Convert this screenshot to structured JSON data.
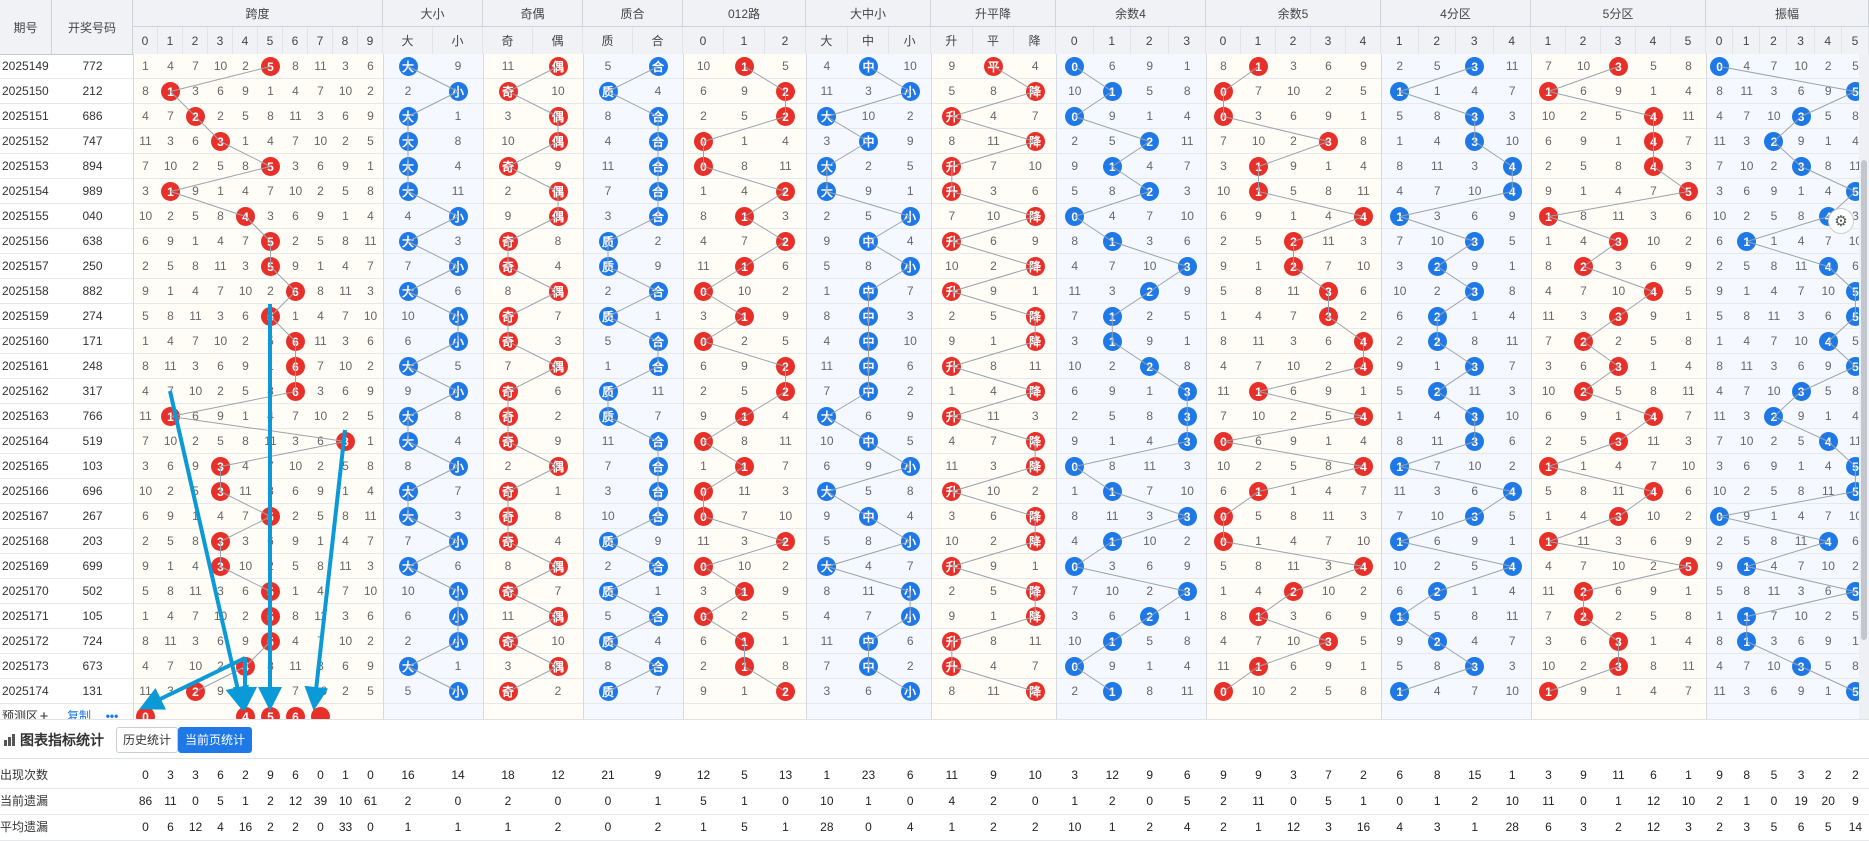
{
  "header": {
    "qihao": "期号",
    "kaijiang": "开奖号码",
    "groups": [
      {
        "label": "跨度",
        "subs": [
          "0",
          "1",
          "2",
          "3",
          "4",
          "5",
          "6",
          "7",
          "8",
          "9"
        ]
      },
      {
        "label": "大小",
        "subs": [
          "大",
          "小"
        ]
      },
      {
        "label": "奇偶",
        "subs": [
          "奇",
          "偶"
        ]
      },
      {
        "label": "质合",
        "subs": [
          "质",
          "合"
        ]
      },
      {
        "label": "012路",
        "subs": [
          "0",
          "1",
          "2"
        ]
      },
      {
        "label": "大中小",
        "subs": [
          "大",
          "中",
          "小"
        ]
      },
      {
        "label": "升平降",
        "subs": [
          "升",
          "平",
          "降"
        ]
      },
      {
        "label": "余数4",
        "subs": [
          "0",
          "1",
          "2",
          "3"
        ]
      },
      {
        "label": "余数5",
        "subs": [
          "0",
          "1",
          "2",
          "3",
          "4"
        ]
      },
      {
        "label": "4分区",
        "subs": [
          "1",
          "2",
          "3",
          "4"
        ]
      },
      {
        "label": "5分区",
        "subs": [
          "1",
          "2",
          "3",
          "4",
          "5"
        ]
      },
      {
        "label": "振幅",
        "subs": [
          "0",
          "1",
          "2",
          "3",
          "4",
          "5"
        ]
      }
    ]
  },
  "issues": [
    "2025149",
    "2025150",
    "2025151",
    "2025152",
    "2025153",
    "2025154",
    "2025155",
    "2025156",
    "2025157",
    "2025158",
    "2025159",
    "2025160",
    "2025161",
    "2025162",
    "2025163",
    "2025164",
    "2025165",
    "2025166",
    "2025167",
    "2025168",
    "2025169",
    "2025170",
    "2025171",
    "2025172",
    "2025173",
    "2025174"
  ],
  "numbers": [
    "772",
    "212",
    "686",
    "747",
    "894",
    "989",
    "040",
    "638",
    "250",
    "882",
    "274",
    "171",
    "248",
    "317",
    "766",
    "519",
    "103",
    "696",
    "267",
    "203",
    "699",
    "502",
    "105",
    "724",
    "673",
    "131"
  ],
  "prediction": {
    "label": "预测区",
    "add": "+",
    "copy": "复制",
    "more": "•••",
    "balls": [
      "0",
      "4",
      "5",
      "6",
      ""
    ]
  },
  "toolbar": {
    "title": "图表指标统计",
    "tab_history": "历史统计",
    "tab_current": "当前页统计"
  },
  "stats": [
    {
      "label": "出现次数",
      "values": [
        "0",
        "3",
        "3",
        "6",
        "2",
        "9",
        "6",
        "0",
        "1",
        "0",
        "16",
        "14",
        "18",
        "12",
        "21",
        "9",
        "12",
        "5",
        "13",
        "1",
        "23",
        "6",
        "11",
        "9",
        "10",
        "3",
        "12",
        "9",
        "6",
        "9",
        "9",
        "3",
        "7",
        "2",
        "6",
        "8",
        "15",
        "1",
        "3",
        "9",
        "11",
        "6",
        "1",
        "9",
        "8",
        "5",
        "3",
        "2",
        "2"
      ]
    },
    {
      "label": "当前遗漏",
      "values": [
        "86",
        "11",
        "0",
        "5",
        "1",
        "2",
        "12",
        "39",
        "10",
        "61",
        "2",
        "0",
        "2",
        "0",
        "0",
        "1",
        "5",
        "1",
        "0",
        "10",
        "1",
        "0",
        "4",
        "2",
        "0",
        "1",
        "2",
        "0",
        "5",
        "2",
        "11",
        "0",
        "5",
        "1",
        "0",
        "1",
        "2",
        "10",
        "11",
        "0",
        "1",
        "12",
        "10",
        "2",
        "1",
        "0",
        "19",
        "20",
        "9"
      ]
    },
    {
      "label": "平均遗漏",
      "values": [
        "0",
        "6",
        "12",
        "4",
        "16",
        "2",
        "2",
        "0",
        "33",
        "0",
        "1",
        "1",
        "1",
        "2",
        "0",
        "2",
        "1",
        "5",
        "1",
        "28",
        "0",
        "4",
        "1",
        "2",
        "2",
        "10",
        "1",
        "2",
        "4",
        "2",
        "1",
        "12",
        "3",
        "16",
        "4",
        "3",
        "1",
        "28",
        "6",
        "3",
        "2",
        "12",
        "3",
        "2",
        "3",
        "5",
        "6",
        "5",
        "14"
      ]
    }
  ],
  "colors": {
    "red": "#e8302a",
    "blue": "#1e78e6",
    "line": "#9aa3ad",
    "arrow": "#0a9ad8"
  }
}
